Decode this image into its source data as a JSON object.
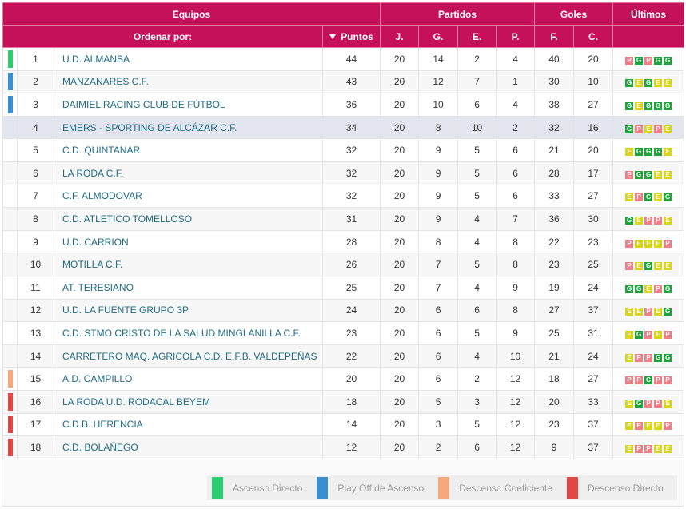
{
  "header": {
    "groups": [
      "Equipos",
      "Partidos",
      "Goles",
      "Últimos"
    ],
    "sort_label": "Ordenar por:",
    "columns": [
      "Puntos",
      "J.",
      "G.",
      "E.",
      "P.",
      "F.",
      "C."
    ]
  },
  "table": {
    "rows": [
      {
        "position": 1,
        "team": "U.D. ALMANSA",
        "points": 44,
        "played": 20,
        "won": 14,
        "drawn": 2,
        "lost": 4,
        "goals_for": 40,
        "goals_against": 20,
        "last": [
          "P",
          "G",
          "P",
          "G",
          "G"
        ],
        "zone": 0
      },
      {
        "position": 2,
        "team": "MANZANARES C.F.",
        "points": 43,
        "played": 20,
        "won": 12,
        "drawn": 7,
        "lost": 1,
        "goals_for": 30,
        "goals_against": 10,
        "last": [
          "G",
          "E",
          "G",
          "E",
          "E"
        ],
        "zone": 1
      },
      {
        "position": 3,
        "team": "DAIMIEL RACING CLUB DE FÚTBOL",
        "points": 36,
        "played": 20,
        "won": 10,
        "drawn": 6,
        "lost": 4,
        "goals_for": 38,
        "goals_against": 27,
        "last": [
          "G",
          "E",
          "G",
          "G",
          "G"
        ],
        "zone": 1
      },
      {
        "position": 4,
        "team": "EMERS - SPORTING DE ALCÁZAR C.F.",
        "points": 34,
        "played": 20,
        "won": 8,
        "drawn": 10,
        "lost": 2,
        "goals_for": 32,
        "goals_against": 16,
        "last": [
          "G",
          "P",
          "E",
          "P",
          "E"
        ],
        "zone": null
      },
      {
        "position": 5,
        "team": "C.D. QUINTANAR",
        "points": 32,
        "played": 20,
        "won": 9,
        "drawn": 5,
        "lost": 6,
        "goals_for": 21,
        "goals_against": 20,
        "last": [
          "E",
          "G",
          "G",
          "G",
          "E"
        ],
        "zone": null
      },
      {
        "position": 6,
        "team": "LA RODA C.F.",
        "points": 32,
        "played": 20,
        "won": 9,
        "drawn": 5,
        "lost": 6,
        "goals_for": 28,
        "goals_against": 17,
        "last": [
          "P",
          "G",
          "G",
          "E",
          "E"
        ],
        "zone": null
      },
      {
        "position": 7,
        "team": "C.F. ALMODOVAR",
        "points": 32,
        "played": 20,
        "won": 9,
        "drawn": 5,
        "lost": 6,
        "goals_for": 33,
        "goals_against": 27,
        "last": [
          "E",
          "P",
          "G",
          "E",
          "G"
        ],
        "zone": null
      },
      {
        "position": 8,
        "team": "C.D. ATLETICO TOMELLOSO",
        "points": 31,
        "played": 20,
        "won": 9,
        "drawn": 4,
        "lost": 7,
        "goals_for": 36,
        "goals_against": 30,
        "last": [
          "G",
          "E",
          "P",
          "P",
          "E"
        ],
        "zone": null
      },
      {
        "position": 9,
        "team": "U.D. CARRION",
        "points": 28,
        "played": 20,
        "won": 8,
        "drawn": 4,
        "lost": 8,
        "goals_for": 22,
        "goals_against": 23,
        "last": [
          "P",
          "E",
          "E",
          "E",
          "P"
        ],
        "zone": null
      },
      {
        "position": 10,
        "team": "MOTILLA C.F.",
        "points": 26,
        "played": 20,
        "won": 7,
        "drawn": 5,
        "lost": 8,
        "goals_for": 23,
        "goals_against": 25,
        "last": [
          "P",
          "E",
          "G",
          "E",
          "E"
        ],
        "zone": null
      },
      {
        "position": 11,
        "team": "AT. TERESIANO",
        "points": 25,
        "played": 20,
        "won": 7,
        "drawn": 4,
        "lost": 9,
        "goals_for": 19,
        "goals_against": 24,
        "last": [
          "G",
          "G",
          "E",
          "P",
          "G"
        ],
        "zone": null
      },
      {
        "position": 12,
        "team": "U.D. LA FUENTE GRUPO 3P",
        "points": 24,
        "played": 20,
        "won": 6,
        "drawn": 6,
        "lost": 8,
        "goals_for": 27,
        "goals_against": 37,
        "last": [
          "E",
          "E",
          "P",
          "E",
          "G"
        ],
        "zone": null
      },
      {
        "position": 13,
        "team": "C.D. STMO CRISTO DE LA SALUD MINGLANILLA C.F.",
        "points": 23,
        "played": 20,
        "won": 6,
        "drawn": 5,
        "lost": 9,
        "goals_for": 25,
        "goals_against": 31,
        "last": [
          "E",
          "G",
          "P",
          "E",
          "P"
        ],
        "zone": null
      },
      {
        "position": 14,
        "team": "CARRETERO MAQ. AGRICOLA C.D. E.F.B. VALDEPEÑAS",
        "points": 22,
        "played": 20,
        "won": 6,
        "drawn": 4,
        "lost": 10,
        "goals_for": 21,
        "goals_against": 24,
        "last": [
          "E",
          "P",
          "P",
          "G",
          "G"
        ],
        "zone": null
      },
      {
        "position": 15,
        "team": "A.D. CAMPILLO",
        "points": 20,
        "played": 20,
        "won": 6,
        "drawn": 2,
        "lost": 12,
        "goals_for": 18,
        "goals_against": 27,
        "last": [
          "P",
          "P",
          "G",
          "P",
          "P"
        ],
        "zone": 2
      },
      {
        "position": 16,
        "team": "LA RODA U.D. RODACAL BEYEM",
        "points": 18,
        "played": 20,
        "won": 5,
        "drawn": 3,
        "lost": 12,
        "goals_for": 20,
        "goals_against": 33,
        "last": [
          "E",
          "G",
          "P",
          "P",
          "E"
        ],
        "zone": 3
      },
      {
        "position": 17,
        "team": "C.D.B. HERENCIA",
        "points": 14,
        "played": 20,
        "won": 3,
        "drawn": 5,
        "lost": 12,
        "goals_for": 23,
        "goals_against": 37,
        "last": [
          "E",
          "P",
          "E",
          "E",
          "P"
        ],
        "zone": 3
      },
      {
        "position": 18,
        "team": "C.D. BOLAÑEGO",
        "points": 12,
        "played": 20,
        "won": 2,
        "drawn": 6,
        "lost": 12,
        "goals_for": 9,
        "goals_against": 37,
        "last": [
          "E",
          "P",
          "P",
          "E",
          "E"
        ],
        "zone": 3
      }
    ]
  },
  "legend": [
    {
      "label": "Ascenso Directo",
      "color": "#2ecc71"
    },
    {
      "label": "Play Off de Ascenso",
      "color": "#3a8fd0"
    },
    {
      "label": "Descenso Coeficiente",
      "color": "#f5a87a"
    },
    {
      "label": "Descenso Directo",
      "color": "#e04848"
    }
  ]
}
